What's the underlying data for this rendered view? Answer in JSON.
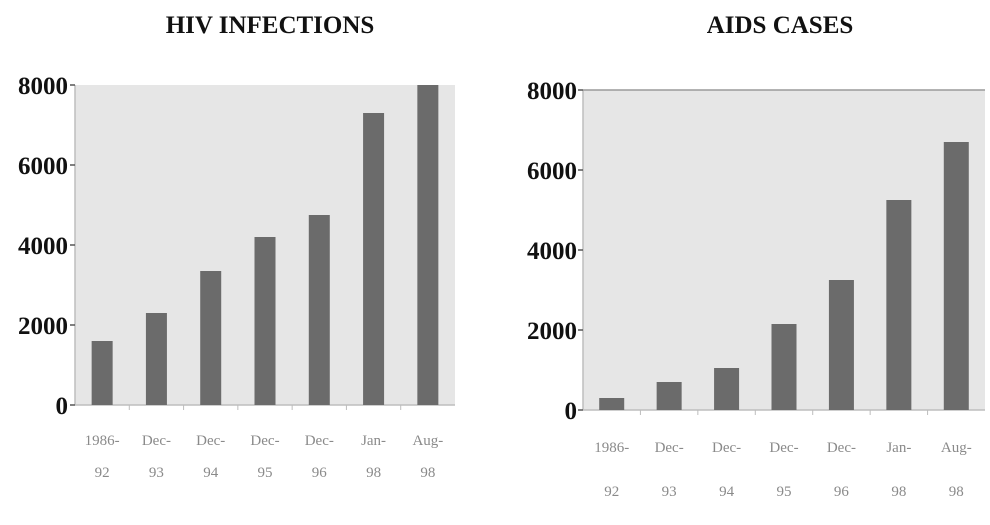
{
  "chart_data": [
    {
      "type": "bar",
      "title": "HIV INFECTIONS",
      "categories": [
        [
          "1986-",
          "92"
        ],
        [
          "Dec-",
          "93"
        ],
        [
          "Dec-",
          "94"
        ],
        [
          "Dec-",
          "95"
        ],
        [
          "Dec-",
          "96"
        ],
        [
          "Jan-",
          "98"
        ],
        [
          "Aug-",
          "98"
        ]
      ],
      "values": [
        1600,
        2300,
        3350,
        4200,
        4750,
        7300,
        8000
      ],
      "yticks": [
        "0",
        "2000",
        "4000",
        "6000",
        "8000"
      ],
      "ylim": [
        0,
        8000
      ],
      "grid": false,
      "bar_color": "#6b6b6b",
      "plot_background": "#e6e6e6"
    },
    {
      "type": "bar",
      "title": "AIDS CASES",
      "categories": [
        [
          "1986-",
          "92"
        ],
        [
          "Dec-",
          "93"
        ],
        [
          "Dec-",
          "94"
        ],
        [
          "Dec-",
          "95"
        ],
        [
          "Dec-",
          "96"
        ],
        [
          "Jan-",
          "98"
        ],
        [
          "Aug-",
          "98"
        ]
      ],
      "values": [
        300,
        700,
        1050,
        2150,
        3250,
        5250,
        6700
      ],
      "yticks": [
        "0",
        "2000",
        "4000",
        "6000",
        "8000"
      ],
      "ylim": [
        0,
        8000
      ],
      "grid": false,
      "bar_color": "#6b6b6b",
      "plot_background": "#e6e6e6"
    }
  ]
}
